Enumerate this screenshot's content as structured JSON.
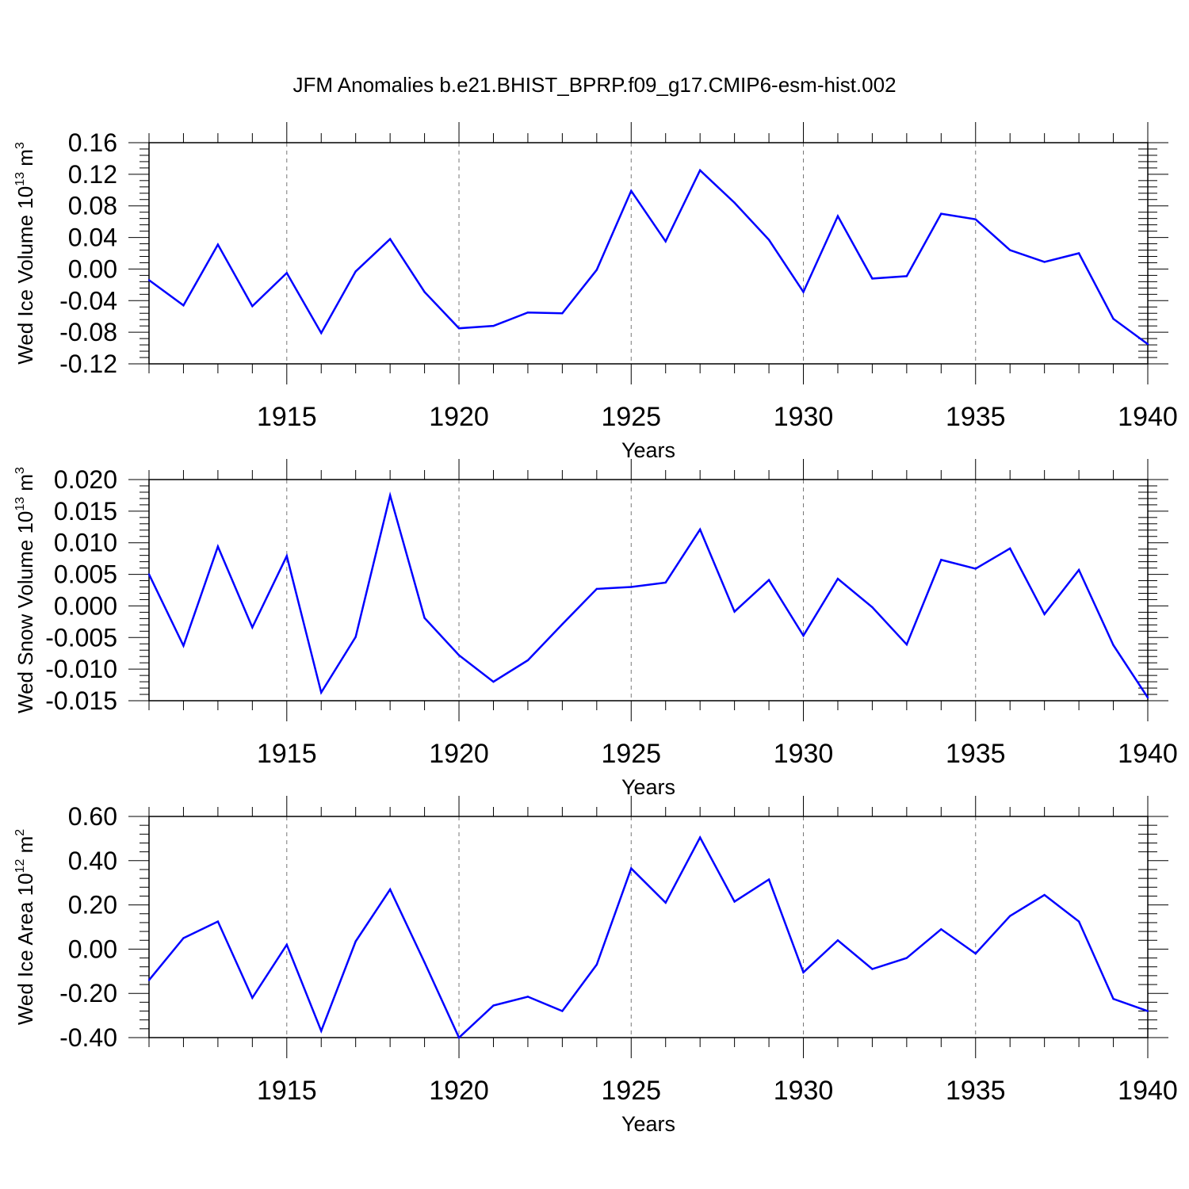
{
  "title": "JFM Anomalies b.e21.BHIST_BPRP.f09_g17.CMIP6-esm-hist.002",
  "line_color": "#0000ff",
  "chart_data": [
    {
      "type": "line",
      "ylabel": {
        "base": "Wed Ice Volume 10",
        "exp": "13",
        "unit": " m",
        "unit_exp": "3"
      },
      "xlabel": "Years",
      "xlim": [
        1911,
        1940
      ],
      "ylim": [
        -0.12,
        0.16
      ],
      "ytick_values": [
        -0.12,
        -0.08,
        -0.04,
        0.0,
        0.04,
        0.08,
        0.12,
        0.16
      ],
      "ytick_labels": [
        "-0.12",
        "-0.08",
        "-0.04",
        "0.00",
        "0.04",
        "0.08",
        "0.12",
        "0.16"
      ],
      "xtick_values": [
        1915,
        1920,
        1925,
        1930,
        1935,
        1940
      ],
      "xtick_labels": [
        "1915",
        "1920",
        "1925",
        "1930",
        "1935",
        "1940"
      ],
      "grid": "dashed vertical at major x ticks",
      "x": [
        1911,
        1912,
        1913,
        1914,
        1915,
        1916,
        1917,
        1918,
        1919,
        1920,
        1921,
        1922,
        1923,
        1924,
        1925,
        1926,
        1927,
        1928,
        1929,
        1930,
        1931,
        1932,
        1933,
        1934,
        1935,
        1936,
        1937,
        1938,
        1939,
        1940
      ],
      "values": [
        -0.014,
        -0.046,
        0.031,
        -0.047,
        -0.005,
        -0.081,
        -0.003,
        0.038,
        -0.029,
        -0.075,
        -0.072,
        -0.055,
        -0.056,
        -0.001,
        0.099,
        0.035,
        0.125,
        0.084,
        0.037,
        -0.029,
        0.067,
        -0.012,
        -0.009,
        0.07,
        0.063,
        0.024,
        0.009,
        0.02,
        -0.063,
        -0.095
      ]
    },
    {
      "type": "line",
      "ylabel": {
        "base": "Wed Snow Volume 10",
        "exp": "13",
        "unit": " m",
        "unit_exp": "3"
      },
      "xlabel": "Years",
      "xlim": [
        1911,
        1940
      ],
      "ylim": [
        -0.015,
        0.02
      ],
      "ytick_values": [
        -0.015,
        -0.01,
        -0.005,
        0.0,
        0.005,
        0.01,
        0.015,
        0.02
      ],
      "ytick_labels": [
        "-0.015",
        "-0.010",
        "-0.005",
        "0.000",
        "0.005",
        "0.010",
        "0.015",
        "0.020"
      ],
      "xtick_values": [
        1915,
        1920,
        1925,
        1930,
        1935,
        1940
      ],
      "xtick_labels": [
        "1915",
        "1920",
        "1925",
        "1930",
        "1935",
        "1940"
      ],
      "grid": "dashed vertical at major x ticks",
      "x": [
        1911,
        1912,
        1913,
        1914,
        1915,
        1916,
        1917,
        1918,
        1919,
        1920,
        1921,
        1922,
        1923,
        1924,
        1925,
        1926,
        1927,
        1928,
        1929,
        1930,
        1931,
        1932,
        1933,
        1934,
        1935,
        1936,
        1937,
        1938,
        1939,
        1940
      ],
      "values": [
        0.005,
        -0.0063,
        0.0094,
        -0.0034,
        0.0079,
        -0.0137,
        -0.0049,
        0.0175,
        -0.0019,
        -0.0078,
        -0.012,
        -0.0086,
        -0.0029,
        0.0027,
        0.003,
        0.0037,
        0.0121,
        -0.0009,
        0.0041,
        -0.0047,
        0.0043,
        -0.0002,
        -0.0061,
        0.0073,
        0.0059,
        0.0091,
        -0.0013,
        0.0057,
        -0.0062,
        -0.0145
      ]
    },
    {
      "type": "line",
      "ylabel": {
        "base": "Wed Ice Area 10",
        "exp": "12",
        "unit": " m",
        "unit_exp": "2"
      },
      "xlabel": "Years",
      "xlim": [
        1911,
        1940
      ],
      "ylim": [
        -0.4,
        0.6
      ],
      "ytick_values": [
        -0.4,
        -0.2,
        0.0,
        0.2,
        0.4,
        0.6
      ],
      "ytick_labels": [
        "-0.40",
        "-0.20",
        "0.00",
        "0.20",
        "0.40",
        "0.60"
      ],
      "xtick_values": [
        1915,
        1920,
        1925,
        1930,
        1935,
        1940
      ],
      "xtick_labels": [
        "1915",
        "1920",
        "1925",
        "1930",
        "1935",
        "1940"
      ],
      "grid": "dashed vertical at major x ticks",
      "x": [
        1911,
        1912,
        1913,
        1914,
        1915,
        1916,
        1917,
        1918,
        1919,
        1920,
        1921,
        1922,
        1923,
        1924,
        1925,
        1926,
        1927,
        1928,
        1929,
        1930,
        1931,
        1932,
        1933,
        1934,
        1935,
        1936,
        1937,
        1938,
        1939,
        1940
      ],
      "values": [
        -0.14,
        0.05,
        0.125,
        -0.22,
        0.02,
        -0.37,
        0.035,
        0.27,
        -0.06,
        -0.4,
        -0.255,
        -0.215,
        -0.28,
        -0.07,
        0.365,
        0.21,
        0.505,
        0.215,
        0.315,
        -0.105,
        0.04,
        -0.09,
        -0.04,
        0.09,
        -0.02,
        0.15,
        0.245,
        0.125,
        -0.225,
        -0.28
      ]
    }
  ]
}
